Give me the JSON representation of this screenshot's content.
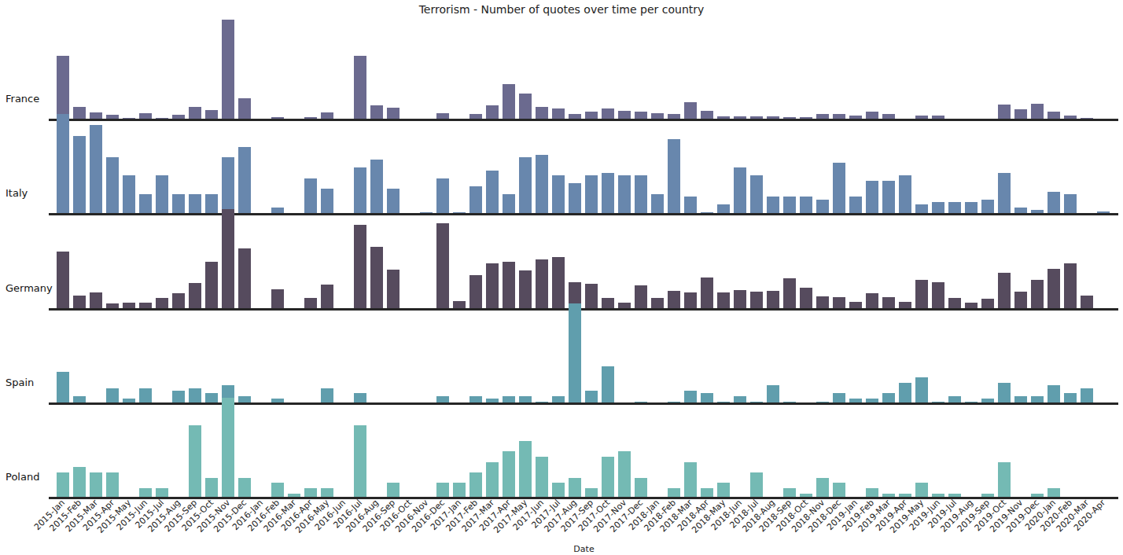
{
  "chart_data": {
    "type": "bar",
    "title": "Terrorism - Number of quotes over time per country",
    "x_label": "Date",
    "tick_labels": "x",
    "ylim": [
      0,
      130
    ],
    "categories": [
      "2015-Jan",
      "2015-Feb",
      "2015-Mar",
      "2015-Apr",
      "2015-May",
      "2015-Jun",
      "2015-Jul",
      "2015-Aug",
      "2015-Sep",
      "2015-Oct",
      "2015-Nov",
      "2015-Dec",
      "2016-Jan",
      "2016-Feb",
      "2016-Mar",
      "2016-Apr",
      "2016-May",
      "2016-Jun",
      "2016-Jul",
      "2016-Aug",
      "2016-Sep",
      "2016-Oct",
      "2016-Nov",
      "2016-Dec",
      "2017-Jan",
      "2017-Feb",
      "2017-Mar",
      "2017-Apr",
      "2017-May",
      "2017-Jun",
      "2017-Jul",
      "2017-Aug",
      "2017-Sep",
      "2017-Oct",
      "2017-Nov",
      "2017-Dec",
      "2018-Jan",
      "2018-Feb",
      "2018-Mar",
      "2018-Apr",
      "2018-May",
      "2018-Jun",
      "2018-Jul",
      "2018-Aug",
      "2018-Sep",
      "2018-Oct",
      "2018-Nov",
      "2018-Dec",
      "2019-Jan",
      "2019-Feb",
      "2019-Mar",
      "2019-Apr",
      "2019-May",
      "2019-Jun",
      "2019-Jul",
      "2019-Aug",
      "2019-Sep",
      "2019-Oct",
      "2019-Nov",
      "2019-Dec",
      "2020-Jan",
      "2020-Feb",
      "2020-Mar",
      "2020-Apr"
    ],
    "series": [
      {
        "name": "France",
        "color": "#6b6a8f",
        "values": [
          81,
          16,
          9,
          6,
          2,
          8,
          2,
          6,
          16,
          12,
          127,
          27,
          0,
          3,
          0,
          3,
          9,
          0,
          81,
          18,
          15,
          0,
          0,
          8,
          0,
          7,
          18,
          45,
          33,
          16,
          14,
          7,
          10,
          14,
          11,
          10,
          8,
          7,
          22,
          11,
          4,
          4,
          4,
          4,
          3,
          3,
          7,
          7,
          5,
          10,
          7,
          0,
          5,
          5,
          0,
          0,
          0,
          19,
          13,
          20,
          10,
          5,
          2,
          0
        ]
      },
      {
        "name": "Italy",
        "color": "#6887ad",
        "values": [
          127,
          99,
          113,
          72,
          49,
          25,
          49,
          25,
          25,
          25,
          72,
          85,
          0,
          8,
          0,
          45,
          32,
          0,
          59,
          69,
          32,
          0,
          2,
          45,
          2,
          35,
          55,
          25,
          72,
          75,
          49,
          39,
          49,
          52,
          49,
          49,
          25,
          95,
          22,
          2,
          12,
          59,
          49,
          22,
          22,
          22,
          18,
          65,
          22,
          42,
          42,
          49,
          12,
          15,
          15,
          15,
          18,
          52,
          8,
          5,
          28,
          25,
          0,
          3
        ]
      },
      {
        "name": "Germany",
        "color": "#564b5e",
        "values": [
          73,
          17,
          21,
          7,
          8,
          8,
          14,
          20,
          33,
          60,
          127,
          77,
          0,
          25,
          0,
          14,
          31,
          0,
          107,
          79,
          50,
          0,
          0,
          109,
          10,
          43,
          58,
          60,
          49,
          63,
          66,
          34,
          32,
          14,
          8,
          30,
          14,
          23,
          21,
          40,
          21,
          24,
          22,
          23,
          39,
          27,
          16,
          15,
          9,
          20,
          15,
          9,
          37,
          34,
          14,
          8,
          13,
          46,
          22,
          37,
          51,
          58,
          17,
          0
        ]
      },
      {
        "name": "Spain",
        "color": "#609ead",
        "values": [
          40,
          9,
          0,
          19,
          6,
          19,
          0,
          16,
          19,
          13,
          23,
          9,
          0,
          6,
          0,
          0,
          19,
          0,
          13,
          0,
          0,
          0,
          0,
          9,
          0,
          9,
          6,
          9,
          9,
          2,
          9,
          127,
          16,
          47,
          0,
          2,
          0,
          2,
          16,
          13,
          2,
          9,
          2,
          23,
          2,
          0,
          2,
          13,
          6,
          6,
          13,
          26,
          33,
          2,
          9,
          2,
          6,
          26,
          9,
          9,
          23,
          13,
          19,
          0
        ]
      },
      {
        "name": "Poland",
        "color": "#74bab4",
        "values": [
          32,
          39,
          32,
          32,
          0,
          12,
          12,
          0,
          92,
          25,
          127,
          25,
          0,
          19,
          5,
          12,
          12,
          0,
          92,
          0,
          19,
          0,
          0,
          19,
          19,
          32,
          45,
          59,
          72,
          52,
          19,
          25,
          12,
          52,
          59,
          25,
          0,
          12,
          45,
          12,
          19,
          0,
          32,
          0,
          12,
          5,
          25,
          19,
          0,
          12,
          5,
          5,
          19,
          5,
          5,
          0,
          5,
          45,
          0,
          5,
          12,
          0,
          0,
          0
        ]
      }
    ]
  }
}
